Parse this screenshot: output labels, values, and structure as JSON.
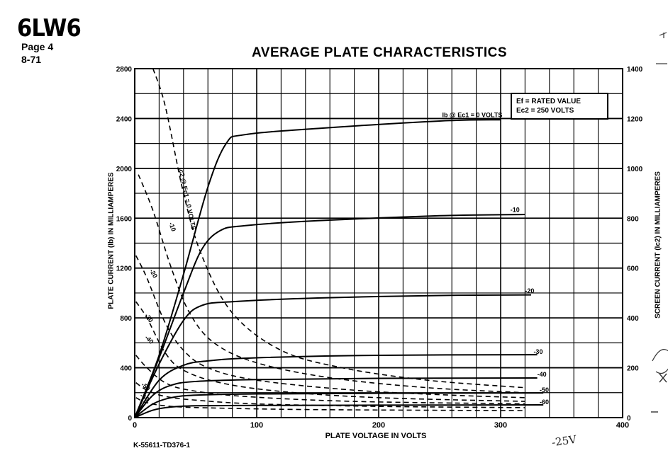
{
  "header": {
    "tube": "6LW6",
    "page": "Page 4",
    "date": "8-71"
  },
  "footer": {
    "code": "K-55611-TD376-1"
  },
  "legend": {
    "line1": "Ef = RATED VALUE",
    "line2": "Ec2 = 250 VOLTS"
  },
  "margin_notes": {
    "bottom": "-25V"
  },
  "chart_data": {
    "type": "line",
    "title": "AVERAGE PLATE CHARACTERISTICS",
    "xlabel": "PLATE VOLTAGE IN VOLTS",
    "ylabel": "PLATE CURRENT (Ib) IN MILLIAMPERES",
    "ylabel_right": "SCREEN CURRENT (Ic2) IN MILLIAMPERES",
    "xlim": [
      0,
      400
    ],
    "ylim": [
      0,
      2800
    ],
    "ylim_right": [
      0,
      1400
    ],
    "x_ticks": [
      0,
      100,
      200,
      300,
      400
    ],
    "y_ticks": [
      0,
      400,
      800,
      1200,
      1600,
      2000,
      2400,
      2800
    ],
    "y_ticks_right": [
      0,
      200,
      400,
      600,
      800,
      1000,
      1200,
      1400
    ],
    "x_tick_labels": [
      "0",
      "100",
      "200",
      "300",
      "400"
    ],
    "y_tick_labels": [
      "0",
      "400",
      "800",
      "1200",
      "1600",
      "2000",
      "2400",
      "2800"
    ],
    "y_tick_labels_right": [
      "0",
      "200",
      "400",
      "600",
      "800",
      "1000",
      "1200",
      "1400"
    ],
    "grid": true,
    "plate_series": [
      {
        "name": "Ib @ Ec1 = 0 VOLTS",
        "points": [
          [
            0,
            0
          ],
          [
            20,
            500
          ],
          [
            40,
            1150
          ],
          [
            60,
            1850
          ],
          [
            75,
            2200
          ],
          [
            90,
            2270
          ],
          [
            150,
            2320
          ],
          [
            250,
            2380
          ],
          [
            300,
            2390
          ]
        ]
      },
      {
        "name": "-10",
        "points": [
          [
            0,
            0
          ],
          [
            20,
            480
          ],
          [
            40,
            1000
          ],
          [
            55,
            1350
          ],
          [
            70,
            1500
          ],
          [
            90,
            1540
          ],
          [
            150,
            1580
          ],
          [
            250,
            1620
          ],
          [
            320,
            1630
          ]
        ]
      },
      {
        "name": "-20",
        "points": [
          [
            0,
            0
          ],
          [
            20,
            430
          ],
          [
            40,
            780
          ],
          [
            55,
            900
          ],
          [
            80,
            930
          ],
          [
            150,
            960
          ],
          [
            250,
            980
          ],
          [
            325,
            985
          ]
        ]
      },
      {
        "name": "-30",
        "points": [
          [
            0,
            0
          ],
          [
            20,
            300
          ],
          [
            40,
            420
          ],
          [
            60,
            455
          ],
          [
            100,
            480
          ],
          [
            200,
            500
          ],
          [
            330,
            505
          ]
        ]
      },
      {
        "name": "-40",
        "points": [
          [
            0,
            0
          ],
          [
            15,
            180
          ],
          [
            30,
            260
          ],
          [
            50,
            290
          ],
          [
            100,
            305
          ],
          [
            200,
            315
          ],
          [
            330,
            318
          ]
        ]
      },
      {
        "name": "-50",
        "points": [
          [
            0,
            0
          ],
          [
            15,
            110
          ],
          [
            30,
            160
          ],
          [
            50,
            180
          ],
          [
            100,
            190
          ],
          [
            200,
            195
          ],
          [
            335,
            198
          ]
        ]
      },
      {
        "name": "-60",
        "points": [
          [
            0,
            0
          ],
          [
            15,
            60
          ],
          [
            30,
            85
          ],
          [
            50,
            95
          ],
          [
            100,
            98
          ],
          [
            200,
            100
          ],
          [
            335,
            102
          ]
        ]
      }
    ],
    "screen_series": [
      {
        "name": "Ic2 @ Ec1 = 0 VOLTS",
        "points": [
          [
            15,
            1400
          ],
          [
            25,
            1250
          ],
          [
            40,
            900
          ],
          [
            55,
            650
          ],
          [
            80,
            420
          ],
          [
            120,
            270
          ],
          [
            170,
            200
          ],
          [
            240,
            150
          ],
          [
            320,
            120
          ]
        ]
      },
      {
        "name": "-10",
        "points": [
          [
            3,
            975
          ],
          [
            15,
            830
          ],
          [
            30,
            600
          ],
          [
            45,
            420
          ],
          [
            65,
            300
          ],
          [
            100,
            220
          ],
          [
            160,
            160
          ],
          [
            240,
            120
          ],
          [
            320,
            100
          ]
        ]
      },
      {
        "name": "-20",
        "points": [
          [
            1,
            650
          ],
          [
            10,
            560
          ],
          [
            25,
            380
          ],
          [
            40,
            270
          ],
          [
            60,
            200
          ],
          [
            100,
            150
          ],
          [
            180,
            110
          ],
          [
            260,
            90
          ],
          [
            320,
            80
          ]
        ]
      },
      {
        "name": "-30",
        "points": [
          [
            1,
            465
          ],
          [
            10,
            400
          ],
          [
            25,
            260
          ],
          [
            40,
            190
          ],
          [
            70,
            140
          ],
          [
            120,
            105
          ],
          [
            200,
            80
          ],
          [
            320,
            65
          ]
        ]
      },
      {
        "name": "-40",
        "points": [
          [
            1,
            250
          ],
          [
            10,
            200
          ],
          [
            25,
            140
          ],
          [
            45,
            110
          ],
          [
            90,
            85
          ],
          [
            180,
            65
          ],
          [
            320,
            55
          ]
        ]
      },
      {
        "name": "-50",
        "points": [
          [
            1,
            140
          ],
          [
            10,
            110
          ],
          [
            25,
            85
          ],
          [
            50,
            70
          ],
          [
            100,
            55
          ],
          [
            200,
            45
          ],
          [
            320,
            40
          ]
        ]
      },
      {
        "name": "-60",
        "points": [
          [
            1,
            80
          ],
          [
            10,
            60
          ],
          [
            30,
            45
          ],
          [
            70,
            38
          ],
          [
            150,
            32
          ],
          [
            320,
            28
          ]
        ]
      }
    ],
    "plate_labels": [
      {
        "text": "Ib @ Ec1 = 0 VOLTS",
        "at": [
          252,
          2410
        ]
      },
      {
        "text": "-10",
        "at": [
          308,
          1650
        ]
      },
      {
        "text": "-20",
        "at": [
          320,
          1000
        ]
      },
      {
        "text": "-30",
        "at": [
          327,
          510
        ]
      },
      {
        "text": "-40",
        "at": [
          330,
          330
        ]
      },
      {
        "text": "-50",
        "at": [
          332,
          205
        ]
      },
      {
        "text": "-60",
        "at": [
          332,
          108
        ]
      }
    ],
    "screen_labels": [
      {
        "text": "Ic2 @ Ec1 = 0 VOLTS",
        "at": [
          36,
          1000
        ],
        "angle": 78
      },
      {
        "text": "-10",
        "at": [
          28,
          780
        ],
        "angle": 70
      },
      {
        "text": "-20",
        "at": [
          12,
          590
        ],
        "angle": 60
      },
      {
        "text": "-30",
        "at": [
          8,
          410
        ],
        "angle": 55
      },
      {
        "text": "-40",
        "at": [
          8,
          320
        ],
        "angle": 45
      },
      {
        "text": "-50",
        "at": [
          5,
          130
        ],
        "angle": 40
      },
      {
        "text": "-60",
        "at": [
          4,
          85
        ],
        "angle": 35
      }
    ]
  }
}
